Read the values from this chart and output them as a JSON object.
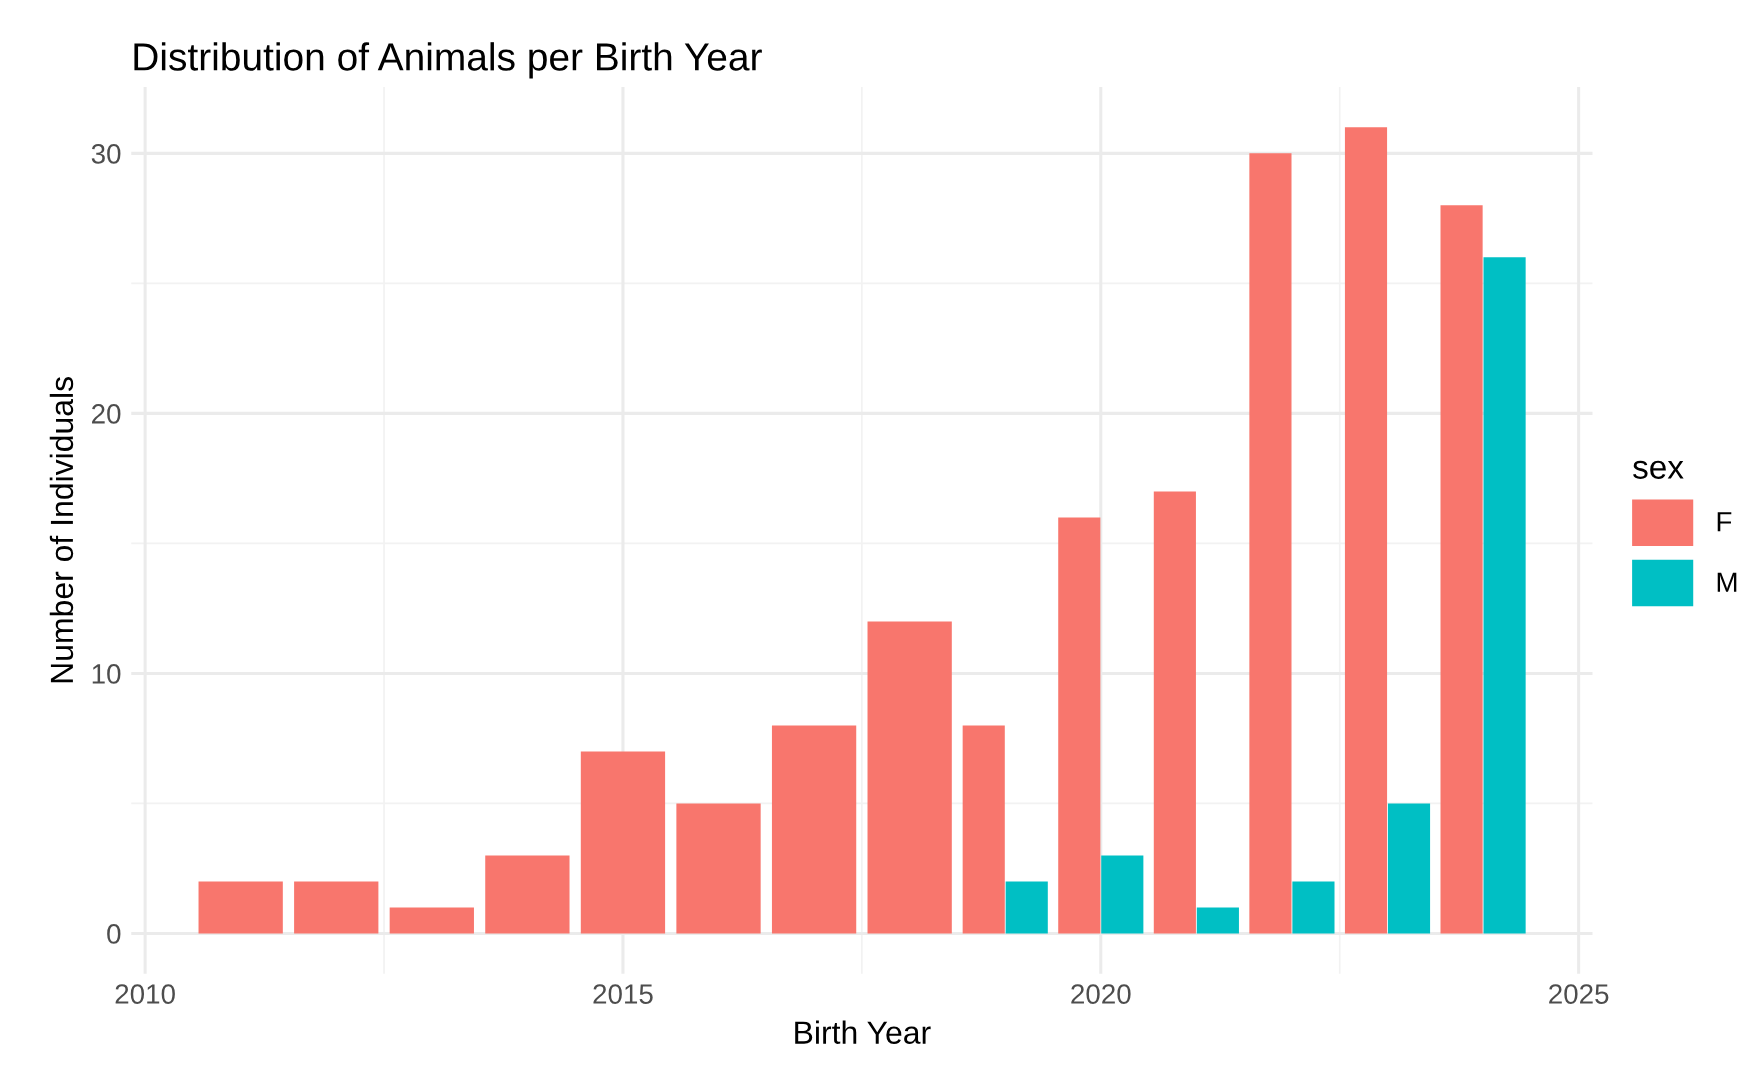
{
  "chart_data": {
    "type": "bar",
    "title": "Distribution of Animals per Birth Year",
    "xlabel": "Birth Year",
    "ylabel": "Number of Individuals",
    "legend_title": "sex",
    "x": [
      2011,
      2012,
      2013,
      2014,
      2015,
      2016,
      2017,
      2018,
      2019,
      2020,
      2021,
      2022,
      2023,
      2024
    ],
    "series": [
      {
        "name": "F",
        "color": "#f8766d",
        "values": [
          2,
          2,
          1,
          3,
          7,
          5,
          8,
          12,
          8,
          16,
          17,
          30,
          31,
          28
        ]
      },
      {
        "name": "M",
        "color": "#00bfc4",
        "values": [
          null,
          null,
          null,
          null,
          null,
          null,
          null,
          null,
          2,
          3,
          1,
          2,
          5,
          26
        ]
      }
    ],
    "xlim": [
      2009.855,
      2025.145
    ],
    "xticks": [
      2010,
      2015,
      2020,
      2025
    ],
    "ylim": [
      -1.55,
      32.55
    ],
    "yticks": [
      0,
      10,
      20,
      30
    ],
    "grid": true,
    "legend": "right"
  }
}
